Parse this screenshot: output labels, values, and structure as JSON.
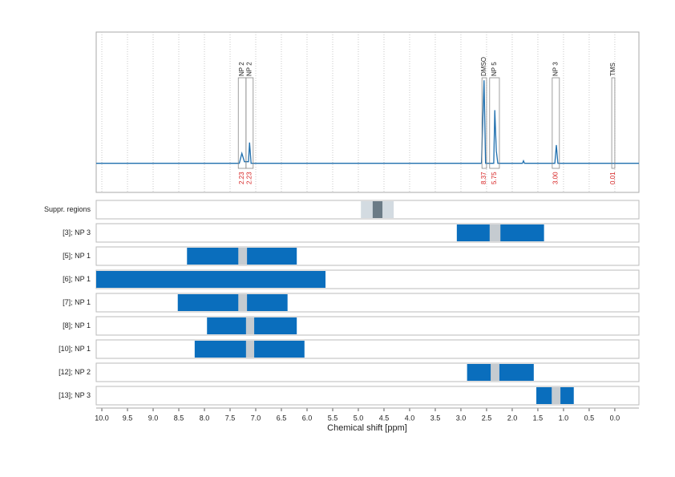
{
  "chart_data": {
    "type": "spectrum",
    "xlabel": "Chemical shift [ppm]",
    "xlim": [
      10.11,
      -0.47
    ],
    "xticks": [
      {
        "value": 10,
        "label": "10.0"
      },
      9.5,
      {
        "value": 9,
        "label": "9.0"
      },
      8.5,
      {
        "value": 8,
        "label": "8.0"
      },
      7.5,
      {
        "value": 7,
        "label": "7.0"
      },
      6.5,
      {
        "value": 6,
        "label": "6.0"
      },
      5.5,
      {
        "value": 5,
        "label": "5.0"
      },
      4.5,
      {
        "value": 4,
        "label": "4.0"
      },
      3.5,
      {
        "value": 3,
        "label": "3.0"
      },
      2.5,
      {
        "value": 2,
        "label": "2.0"
      },
      1.5,
      {
        "value": 1,
        "label": "1.0"
      },
      0.5,
      {
        "value": 0,
        "label": "0.0"
      }
    ],
    "grid": true,
    "spectrum": {
      "color": "#1f6fae",
      "ylim": [
        -0.35,
        1.58
      ],
      "x": [
        10.11,
        7.32,
        7.27,
        7.22,
        7.14,
        7.12,
        7.09,
        2.6,
        2.55,
        2.52,
        2.36,
        2.34,
        2.31,
        2.28,
        1.8,
        1.78,
        1.76,
        1.17,
        1.14,
        1.11,
        -0.47
      ],
      "y": [
        0,
        0,
        0.12,
        0.02,
        0.02,
        0.25,
        0,
        0,
        1.0,
        0,
        0,
        0.64,
        0.15,
        0,
        0,
        0.03,
        0,
        0,
        0.22,
        0,
        0
      ]
    },
    "annotations": [
      {
        "label": "NP 2",
        "range": [
          7.34,
          7.19
        ],
        "integral": 2.23,
        "integral_label": "2.23"
      },
      {
        "label": "NP 2",
        "range": [
          7.19,
          7.05
        ],
        "integral": 2.23,
        "integral_label": "2.23"
      },
      {
        "label": "DMSO",
        "range": [
          2.59,
          2.5
        ],
        "integral": 8.37,
        "integral_label": "8.37"
      },
      {
        "label": "NP 5",
        "range": [
          2.44,
          2.25
        ],
        "integral": 5.75,
        "integral_label": "5.75"
      },
      {
        "label": "NP 3",
        "range": [
          1.22,
          1.08
        ],
        "integral": 3,
        "integral_label": "3.00"
      },
      {
        "label": "TMS",
        "range": [
          0.06,
          0.0
        ],
        "integral": 0.01,
        "integral_label": "0.01"
      }
    ],
    "tracks": [
      {
        "name": "Suppr. regions",
        "segments": [
          {
            "range": [
              4.95,
              4.31
            ],
            "color": "#d3dbe1"
          },
          {
            "range": [
              4.72,
              4.53
            ],
            "color": "#6b7b86"
          }
        ]
      },
      {
        "name": "[3]; NP 3",
        "segments": [
          {
            "range": [
              3.08,
              1.38
            ],
            "color": "#0a6ebd"
          },
          {
            "range": [
              2.44,
              2.23
            ],
            "color": "#c5cbd0"
          }
        ]
      },
      {
        "name": "[5]; NP 1",
        "segments": [
          {
            "range": [
              8.34,
              6.2
            ],
            "color": "#0a6ebd"
          },
          {
            "range": [
              7.34,
              7.17
            ],
            "color": "#c5cbd0"
          }
        ]
      },
      {
        "name": "[6]; NP 1",
        "segments": [
          {
            "range": [
              10.11,
              5.64
            ],
            "color": "#0a6ebd"
          }
        ]
      },
      {
        "name": "[7]; NP 1",
        "segments": [
          {
            "range": [
              8.52,
              6.38
            ],
            "color": "#0a6ebd"
          },
          {
            "range": [
              7.34,
              7.17
            ],
            "color": "#c5cbd0"
          }
        ]
      },
      {
        "name": "[8]; NP 1",
        "segments": [
          {
            "range": [
              7.95,
              6.2
            ],
            "color": "#0a6ebd"
          },
          {
            "range": [
              7.19,
              7.03
            ],
            "color": "#c5cbd0"
          }
        ]
      },
      {
        "name": "[10]; NP 1",
        "segments": [
          {
            "range": [
              8.19,
              6.05
            ],
            "color": "#0a6ebd"
          },
          {
            "range": [
              7.19,
              7.03
            ],
            "color": "#c5cbd0"
          }
        ]
      },
      {
        "name": "[12]; NP 2",
        "segments": [
          {
            "range": [
              2.88,
              1.58
            ],
            "color": "#0a6ebd"
          },
          {
            "range": [
              2.42,
              2.25
            ],
            "color": "#c5cbd0"
          }
        ]
      },
      {
        "name": "[13]; NP 3",
        "segments": [
          {
            "range": [
              1.53,
              0.8
            ],
            "color": "#0a6ebd"
          },
          {
            "range": [
              1.23,
              1.06
            ],
            "color": "#c5cbd0"
          }
        ]
      }
    ]
  }
}
